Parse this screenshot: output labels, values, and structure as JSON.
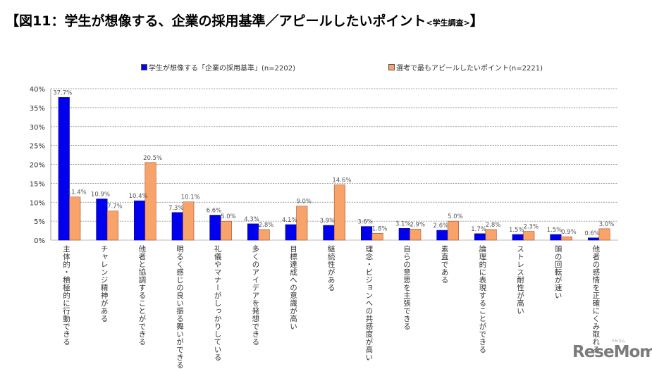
{
  "title": {
    "main": "【図11：学生が想像する、企業の採用基準／アピールしたいポイント",
    "sub": "<学生調査>",
    "close": "】"
  },
  "logo": {
    "text": "ReseMom",
    "small": "リセマム"
  },
  "colors": {
    "series1": "#0000ee",
    "series2": "#f8a36a",
    "series2_border": "#a0522d",
    "grid": "#888888"
  },
  "chart_data": {
    "type": "bar",
    "title": "図11：学生が想像する、企業の採用基準／アピールしたいポイント<学生調査>",
    "xlabel": "",
    "ylabel": "",
    "ylim": [
      0,
      40
    ],
    "yticks": [
      "0%",
      "5%",
      "10%",
      "15%",
      "20%",
      "25%",
      "30%",
      "35%",
      "40%"
    ],
    "ytick_values": [
      0,
      5,
      10,
      15,
      20,
      25,
      30,
      35,
      40
    ],
    "grid": true,
    "legend_position": "top",
    "categories": [
      "主体的・積極的に行動できる",
      "チャレンジ精神がある",
      "他者と協調することができる",
      "明るく感じの良い振る舞いができる",
      "礼儀やマナーがしっかりしている",
      "多くのアイデアを発想できる",
      "目標達成への意識が高い",
      "継続性がある",
      "理念・ビジョンへの共感度が高い",
      "自らの意思を主張できる",
      "素直である",
      "論理的に表現することができる",
      "ストレス耐性が高い",
      "頭の回転が速い",
      "他者の感情を正確にくみ取れる"
    ],
    "series": [
      {
        "name": "学生が想像する「企業の採用基準」(n=2202)",
        "values": [
          37.7,
          10.9,
          10.4,
          7.3,
          6.6,
          4.3,
          4.1,
          3.9,
          3.6,
          3.1,
          2.6,
          1.7,
          1.5,
          1.5,
          0.6
        ],
        "labels": [
          "37.7%",
          "10.9%",
          "10.4%",
          "7.3%",
          "6.6%",
          "4.3%",
          "4.1%",
          "3.9%",
          "3.6%",
          "3.1%",
          "2.6%",
          "1.7%",
          "1.5%",
          "1.5%",
          "0.6%"
        ]
      },
      {
        "name": "選考で最もアピールしたいポイント(n=2221)",
        "values": [
          11.4,
          7.7,
          20.5,
          10.1,
          5.0,
          2.8,
          9.0,
          14.6,
          1.8,
          2.9,
          5.0,
          2.8,
          2.3,
          0.9,
          3.0
        ],
        "labels": [
          "11.4%",
          "7.7%",
          "20.5%",
          "10.1%",
          "5.0%",
          "2.8%",
          "9.0%",
          "14.6%",
          "1.8%",
          "2.9%",
          "5.0%",
          "2.8%",
          "2.3%",
          "0.9%",
          "3.0%"
        ]
      }
    ]
  }
}
